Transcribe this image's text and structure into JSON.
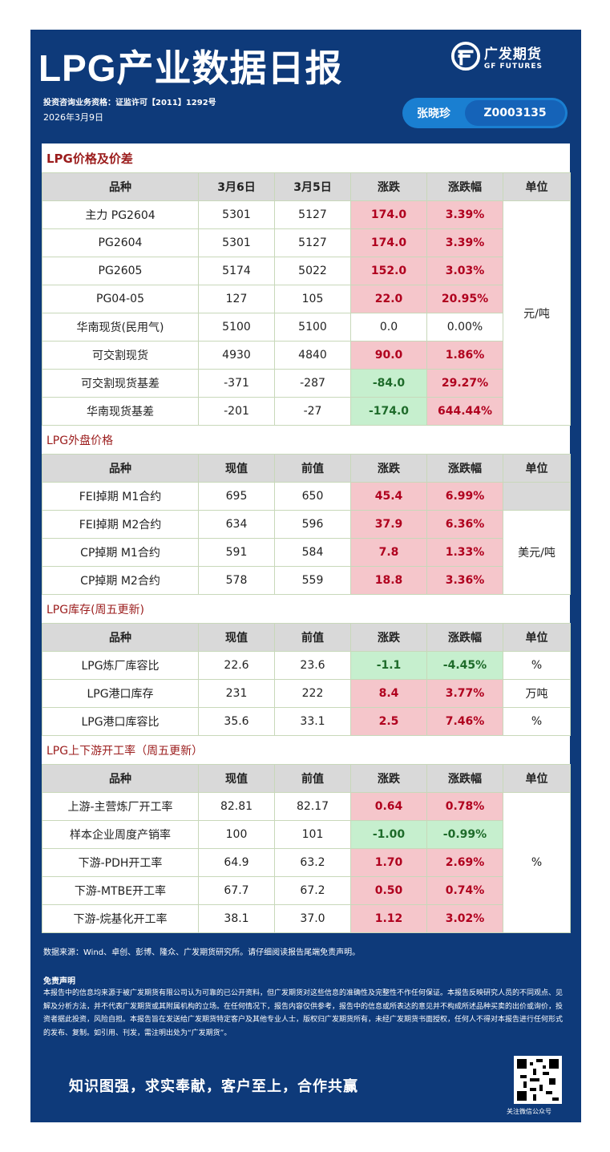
{
  "header": {
    "title": "LPG产业数据日报",
    "logo_cn": "广发期货",
    "logo_en": "GF FUTURES",
    "qualification": "投资咨询业务资格：证监许可【2011】1292号",
    "date": "2026年3月9日",
    "analyst_name": "张晓珍",
    "analyst_code": "Z0003135"
  },
  "sections": {
    "price": {
      "title": "LPG价格及价差",
      "headers": [
        "品种",
        "3月6日",
        "3月5日",
        "涨跌",
        "涨跌幅",
        "单位"
      ],
      "unit": "元/吨",
      "rows": [
        {
          "name": "主力 PG2604",
          "cur": "5301",
          "prev": "5127",
          "chg": "174.0",
          "pct": "3.39%",
          "dir": "up"
        },
        {
          "name": "PG2604",
          "cur": "5301",
          "prev": "5127",
          "chg": "174.0",
          "pct": "3.39%",
          "dir": "up"
        },
        {
          "name": "PG2605",
          "cur": "5174",
          "prev": "5022",
          "chg": "152.0",
          "pct": "3.03%",
          "dir": "up"
        },
        {
          "name": "PG04-05",
          "cur": "127",
          "prev": "105",
          "chg": "22.0",
          "pct": "20.95%",
          "dir": "up"
        },
        {
          "name": "华南现货(民用气)",
          "cur": "5100",
          "prev": "5100",
          "chg": "0.0",
          "pct": "0.00%",
          "dir": "flat"
        },
        {
          "name": "可交割现货",
          "cur": "4930",
          "prev": "4840",
          "chg": "90.0",
          "pct": "1.86%",
          "dir": "up"
        },
        {
          "name": "可交割现货基差",
          "cur": "-371",
          "prev": "-287",
          "chg": "-84.0",
          "pct": "29.27%",
          "dir": "mixed"
        },
        {
          "name": "华南现货基差",
          "cur": "-201",
          "prev": "-27",
          "chg": "-174.0",
          "pct": "644.44%",
          "dir": "mixed"
        }
      ]
    },
    "external": {
      "title": "LPG外盘价格",
      "headers": [
        "品种",
        "现值",
        "前值",
        "涨跌",
        "涨跌幅",
        "单位"
      ],
      "unit": "美元/吨",
      "rows": [
        {
          "name": "FEI掉期 M1合约",
          "cur": "695",
          "prev": "650",
          "chg": "45.4",
          "pct": "6.99%",
          "dir": "up"
        },
        {
          "name": "FEI掉期 M2合约",
          "cur": "634",
          "prev": "596",
          "chg": "37.9",
          "pct": "6.36%",
          "dir": "up"
        },
        {
          "name": "CP掉期 M1合约",
          "cur": "591",
          "prev": "584",
          "chg": "7.8",
          "pct": "1.33%",
          "dir": "up"
        },
        {
          "name": "CP掉期 M2合约",
          "cur": "578",
          "prev": "559",
          "chg": "18.8",
          "pct": "3.36%",
          "dir": "up"
        }
      ]
    },
    "inventory": {
      "title": "LPG库存(周五更新)",
      "headers": [
        "品种",
        "现值",
        "前值",
        "涨跌",
        "涨跌幅",
        "单位"
      ],
      "rows": [
        {
          "name": "LPG炼厂库容比",
          "cur": "22.6",
          "prev": "23.6",
          "chg": "-1.1",
          "pct": "-4.45%",
          "dir": "down",
          "unit": "%"
        },
        {
          "name": "LPG港口库存",
          "cur": "231",
          "prev": "222",
          "chg": "8.4",
          "pct": "3.77%",
          "dir": "up",
          "unit": "万吨"
        },
        {
          "name": "LPG港口库容比",
          "cur": "35.6",
          "prev": "33.1",
          "chg": "2.5",
          "pct": "7.46%",
          "dir": "up",
          "unit": "%"
        }
      ]
    },
    "operating": {
      "title": "LPG上下游开工率（周五更新）",
      "headers": [
        "品种",
        "现值",
        "前值",
        "涨跌",
        "涨跌幅",
        "单位"
      ],
      "unit": "%",
      "rows": [
        {
          "name": "上游-主营炼厂开工率",
          "cur": "82.81",
          "prev": "82.17",
          "chg": "0.64",
          "pct": "0.78%",
          "dir": "up"
        },
        {
          "name": "样本企业周度产销率",
          "cur": "100",
          "prev": "101",
          "chg": "-1.00",
          "pct": "-0.99%",
          "dir": "down"
        },
        {
          "name": "下游-PDH开工率",
          "cur": "64.9",
          "prev": "63.2",
          "chg": "1.70",
          "pct": "2.69%",
          "dir": "up"
        },
        {
          "name": "下游-MTBE开工率",
          "cur": "67.7",
          "prev": "67.2",
          "chg": "0.50",
          "pct": "0.74%",
          "dir": "up"
        },
        {
          "name": "下游-烷基化开工率",
          "cur": "38.1",
          "prev": "37.0",
          "chg": "1.12",
          "pct": "3.02%",
          "dir": "up"
        }
      ]
    }
  },
  "footer": {
    "source": "数据来源：Wind、卓创、彭博、隆众、广发期货研究所。请仔细阅读报告尾端免责声明。",
    "disclaimer_title": "免责声明",
    "disclaimer": "本报告中的信息均来源于被广发期货有限公司认为可靠的已公开资料，但广发期货对这些信息的准确性及完整性不作任何保证。本报告反映研究人员的不同观点、见解及分析方法，并不代表广发期货或其附属机构的立场。在任何情况下，报告内容仅供参考，报告中的信息或所表达的意见并不构成所述品种买卖的出价或询价，投资者据此投资，风险自担。本报告旨在发送给广发期货特定客户及其他专业人士，版权归广发期货所有，未经广发期货书面授权，任何人不得对本报告进行任何形式的发布、复制。如引用、刊发，需注明出处为“广发期货”。",
    "slogan": "知识图强，求实奉献，客户至上，合作共赢",
    "qr_caption": "关注微信公众号"
  },
  "colors": {
    "background": "#0e3a7a",
    "up_bg": "#f5c6cb",
    "up_text": "#b0001e",
    "down_bg": "#c6efce",
    "down_text": "#1e6b2a"
  }
}
